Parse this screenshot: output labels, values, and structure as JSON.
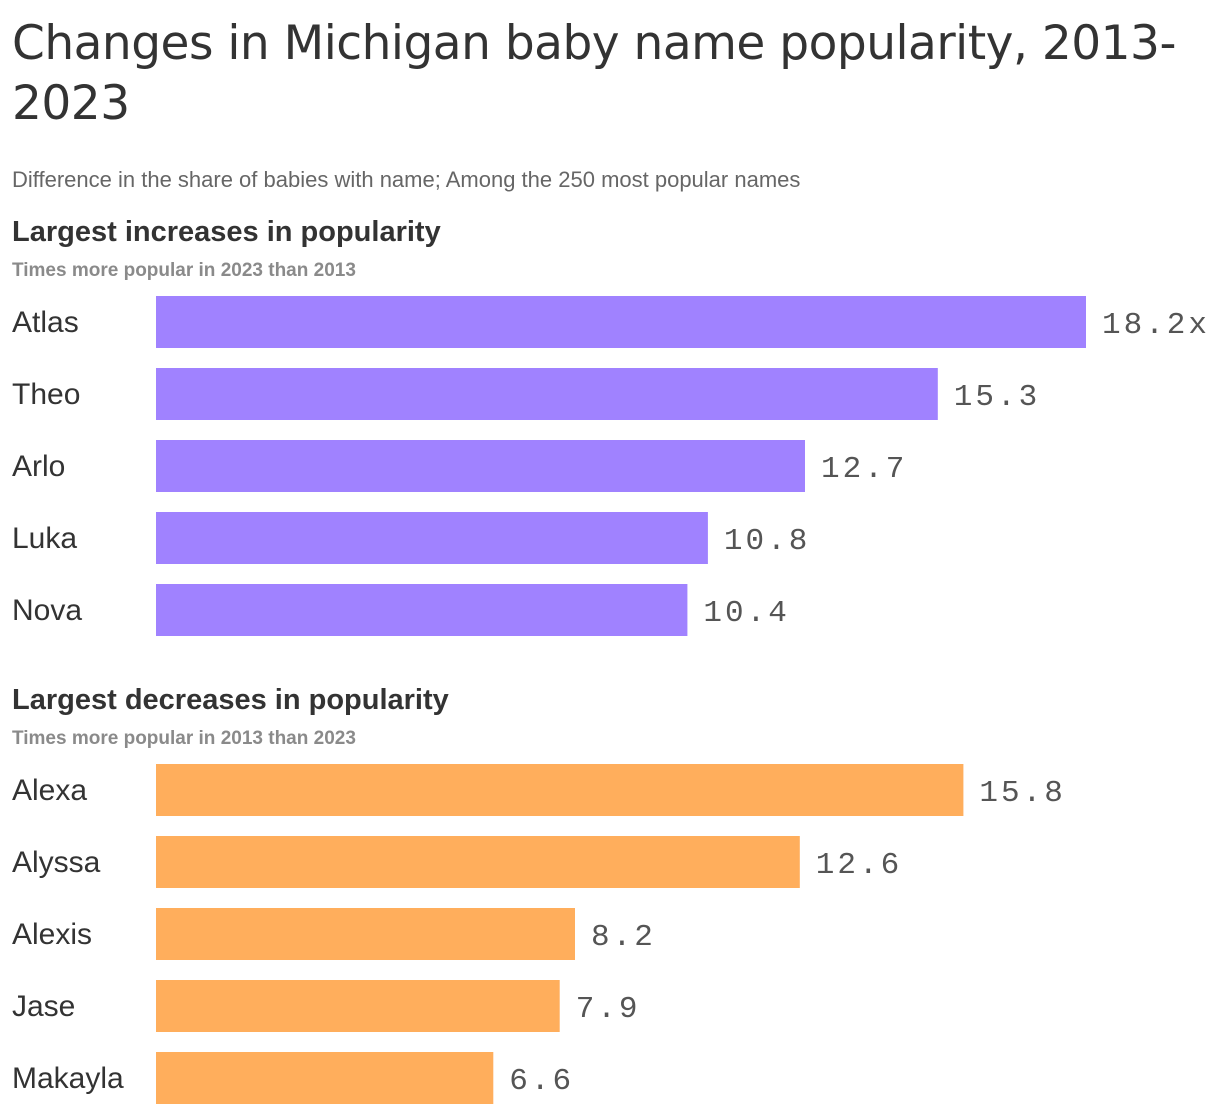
{
  "title": "Changes in Michigan baby name popularity, 2013-2023",
  "subtitle": "Difference in the share of babies with name; Among the 250 most popular names",
  "colors": {
    "increase": "#a082ff",
    "decrease": "#ffae5c"
  },
  "chart_data": [
    {
      "type": "bar",
      "orientation": "horizontal",
      "title": "Largest increases in popularity",
      "subtitle": "Times more popular in 2023 than 2013",
      "categories": [
        "Atlas",
        "Theo",
        "Arlo",
        "Luka",
        "Nova"
      ],
      "values": [
        18.2,
        15.3,
        12.7,
        10.8,
        10.4
      ],
      "value_labels": [
        "18.2x",
        "15.3",
        "12.7",
        "10.8",
        "10.4"
      ],
      "color": "#a082ff",
      "grid": false,
      "legend": "none"
    },
    {
      "type": "bar",
      "orientation": "horizontal",
      "title": "Largest decreases in popularity",
      "subtitle": "Times more popular in 2013 than 2023",
      "categories": [
        "Alexa",
        "Alyssa",
        "Alexis",
        "Jase",
        "Makayla"
      ],
      "values": [
        15.8,
        12.6,
        8.2,
        7.9,
        6.6
      ],
      "value_labels": [
        "15.8",
        "12.6",
        "8.2",
        "7.9",
        "6.6"
      ],
      "color": "#ffae5c",
      "grid": false,
      "legend": "none"
    }
  ]
}
